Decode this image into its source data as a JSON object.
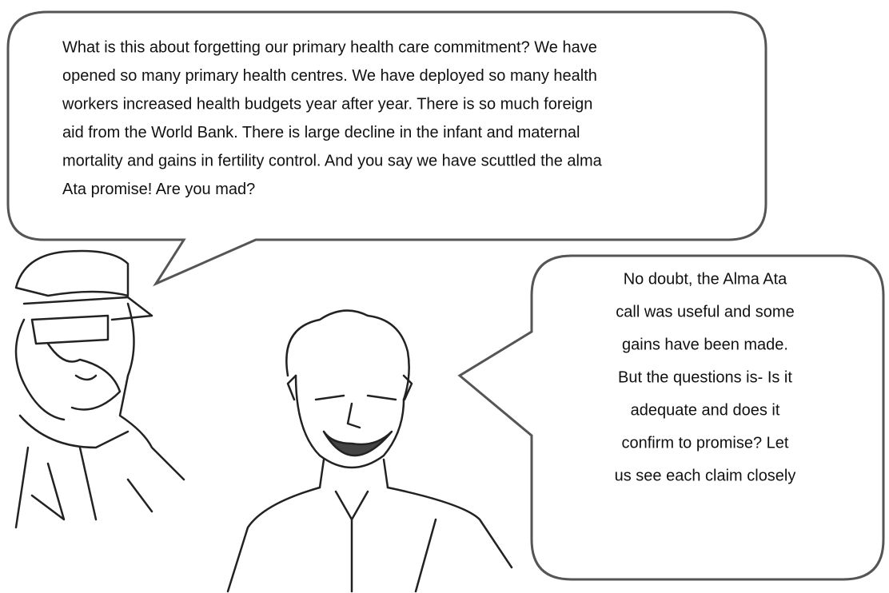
{
  "speech_bubbles": [
    {
      "lines": [
        "What is this about forgetting our primary health care commitment? We have",
        "opened so many primary health centres. We have deployed so many health",
        "workers increased health budgets year after year. There is so much foreign",
        "aid from the World Bank. There is large decline in the infant and maternal",
        "mortality and gains in fertility control. And you say we have scuttled the alma",
        "Ata promise! Are you mad?"
      ]
    },
    {
      "lines": [
        "No doubt, the Alma Ata",
        "call was useful and some",
        "gains have been made.",
        "But the questions is- Is it",
        "adequate and does it",
        "confirm to promise? Let",
        "us see each claim closely"
      ]
    }
  ]
}
